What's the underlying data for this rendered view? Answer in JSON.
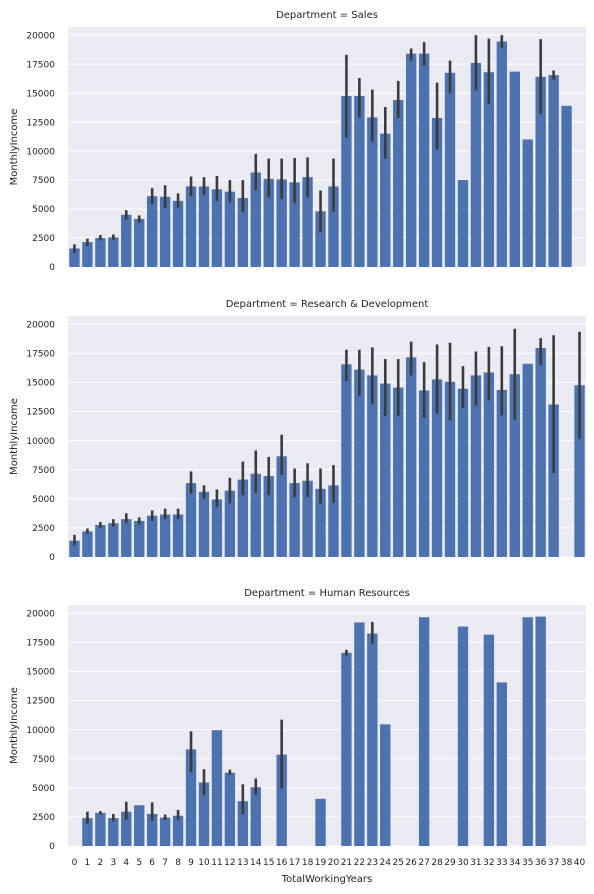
{
  "chart_data": {
    "type": "bar",
    "xlabel": "TotalWorkingYears",
    "ylabel": "MonthlyIncome",
    "categories": [
      "0",
      "1",
      "2",
      "3",
      "4",
      "5",
      "6",
      "7",
      "8",
      "9",
      "10",
      "11",
      "12",
      "13",
      "14",
      "15",
      "16",
      "17",
      "18",
      "19",
      "20",
      "21",
      "22",
      "23",
      "24",
      "25",
      "26",
      "27",
      "28",
      "29",
      "30",
      "31",
      "32",
      "33",
      "34",
      "35",
      "36",
      "37",
      "38",
      "40"
    ],
    "yticks": [
      "0",
      "2500",
      "5000",
      "7500",
      "10000",
      "12500",
      "15000",
      "17500",
      "20000"
    ],
    "ylim": [
      0,
      20700
    ],
    "grid": true,
    "bar_color": "#4c72b0",
    "error_color": "#3b3b3b",
    "background_color": "#eaeaf2",
    "panels": [
      {
        "title": "Department = Sales",
        "values": [
          1600,
          2150,
          2500,
          2550,
          4500,
          4150,
          6100,
          6050,
          5700,
          6950,
          6950,
          6700,
          6500,
          5950,
          8150,
          7600,
          7550,
          7300,
          7750,
          4800,
          6950,
          14750,
          14750,
          12900,
          11500,
          14400,
          18400,
          18400,
          12850,
          16750,
          7500,
          17600,
          16800,
          19450,
          16850,
          11000,
          16400,
          16550,
          13900,
          null
        ],
        "errors": [
          [
            1200,
            1950
          ],
          [
            1800,
            2450
          ],
          [
            2300,
            2750
          ],
          [
            2350,
            2800
          ],
          [
            4100,
            4900
          ],
          [
            3800,
            4450
          ],
          [
            5400,
            6800
          ],
          [
            5100,
            7050
          ],
          [
            5100,
            6350
          ],
          [
            6100,
            7800
          ],
          [
            6200,
            7750
          ],
          [
            5700,
            7850
          ],
          [
            5550,
            7500
          ],
          [
            4700,
            7500
          ],
          [
            6650,
            9750
          ],
          [
            6000,
            9350
          ],
          [
            5850,
            9350
          ],
          [
            5500,
            9400
          ],
          [
            6000,
            9450
          ],
          [
            3000,
            6600
          ],
          [
            4750,
            9350
          ],
          [
            11150,
            18300
          ],
          [
            12900,
            16300
          ],
          [
            10800,
            15300
          ],
          [
            9350,
            13800
          ],
          [
            12850,
            16050
          ],
          [
            17800,
            18850
          ],
          [
            17350,
            19400
          ],
          [
            10100,
            15900
          ],
          [
            15000,
            17800
          ],
          [
            null,
            null
          ],
          [
            15250,
            20000
          ],
          [
            14050,
            19700
          ],
          [
            18900,
            20000
          ],
          [
            null,
            null
          ],
          [
            null,
            null
          ],
          [
            13200,
            19650
          ],
          [
            16150,
            16950
          ],
          [
            null,
            null
          ],
          [
            null,
            null
          ]
        ]
      },
      {
        "title": "Department = Research & Development",
        "values": [
          1400,
          2200,
          2750,
          2900,
          3250,
          3100,
          3550,
          3650,
          3650,
          6350,
          5600,
          4950,
          5700,
          6650,
          7150,
          6950,
          8650,
          6350,
          6550,
          5850,
          6150,
          16550,
          16100,
          15600,
          14900,
          14550,
          17150,
          14300,
          15250,
          15050,
          14450,
          15600,
          15850,
          14350,
          15700,
          16600,
          17950,
          13100,
          null,
          14750
        ],
        "errors": [
          [
            1000,
            1900
          ],
          [
            2000,
            2450
          ],
          [
            2500,
            3000
          ],
          [
            2600,
            3250
          ],
          [
            2900,
            3750
          ],
          [
            2800,
            3400
          ],
          [
            3100,
            4000
          ],
          [
            3250,
            4150
          ],
          [
            3250,
            4150
          ],
          [
            5450,
            7350
          ],
          [
            5000,
            6150
          ],
          [
            4300,
            5800
          ],
          [
            4600,
            6800
          ],
          [
            5300,
            8200
          ],
          [
            5500,
            9150
          ],
          [
            5300,
            8600
          ],
          [
            7050,
            10500
          ],
          [
            5150,
            7600
          ],
          [
            5150,
            8050
          ],
          [
            4550,
            7600
          ],
          [
            4650,
            7900
          ],
          [
            15100,
            17800
          ],
          [
            13850,
            17800
          ],
          [
            13100,
            18000
          ],
          [
            12100,
            17000
          ],
          [
            12100,
            17000
          ],
          [
            15600,
            18500
          ],
          [
            11950,
            16750
          ],
          [
            12300,
            18250
          ],
          [
            11750,
            18400
          ],
          [
            12800,
            16400
          ],
          [
            13000,
            17650
          ],
          [
            13450,
            18050
          ],
          [
            12150,
            18100
          ],
          [
            11800,
            19600
          ],
          [
            null,
            null
          ],
          [
            16500,
            18800
          ],
          [
            7200,
            19050
          ],
          [
            null,
            null
          ],
          [
            10150,
            19350
          ]
        ]
      },
      {
        "title": "Department = Human Resources",
        "values": [
          null,
          2400,
          2850,
          2400,
          2950,
          3500,
          2750,
          2450,
          2600,
          8300,
          5450,
          9950,
          6300,
          3850,
          5050,
          null,
          7850,
          null,
          null,
          4050,
          null,
          16600,
          19200,
          18250,
          10450,
          null,
          null,
          19650,
          null,
          null,
          18850,
          null,
          18150,
          14050,
          null,
          19650,
          19700,
          null,
          null,
          null
        ],
        "errors": [
          [
            null,
            null
          ],
          [
            1900,
            2950
          ],
          [
            2700,
            3000
          ],
          [
            2100,
            2750
          ],
          [
            2250,
            3800
          ],
          [
            null,
            null
          ],
          [
            2150,
            3750
          ],
          [
            2250,
            2700
          ],
          [
            2200,
            3100
          ],
          [
            6350,
            9850
          ],
          [
            4350,
            6600
          ],
          [
            null,
            null
          ],
          [
            6100,
            6550
          ],
          [
            2750,
            5300
          ],
          [
            4400,
            5800
          ],
          [
            null,
            null
          ],
          [
            4950,
            10850
          ],
          [
            null,
            null
          ],
          [
            null,
            null
          ],
          [
            null,
            null
          ],
          [
            null,
            null
          ],
          [
            16350,
            16850
          ],
          [
            null,
            null
          ],
          [
            17400,
            19250
          ],
          [
            null,
            null
          ],
          [
            null,
            null
          ],
          [
            null,
            null
          ],
          [
            null,
            null
          ],
          [
            null,
            null
          ],
          [
            null,
            null
          ],
          [
            null,
            null
          ],
          [
            null,
            null
          ],
          [
            null,
            null
          ],
          [
            null,
            null
          ],
          [
            null,
            null
          ],
          [
            null,
            null
          ],
          [
            null,
            null
          ],
          [
            null,
            null
          ],
          [
            null,
            null
          ],
          [
            null,
            null
          ]
        ]
      }
    ]
  }
}
